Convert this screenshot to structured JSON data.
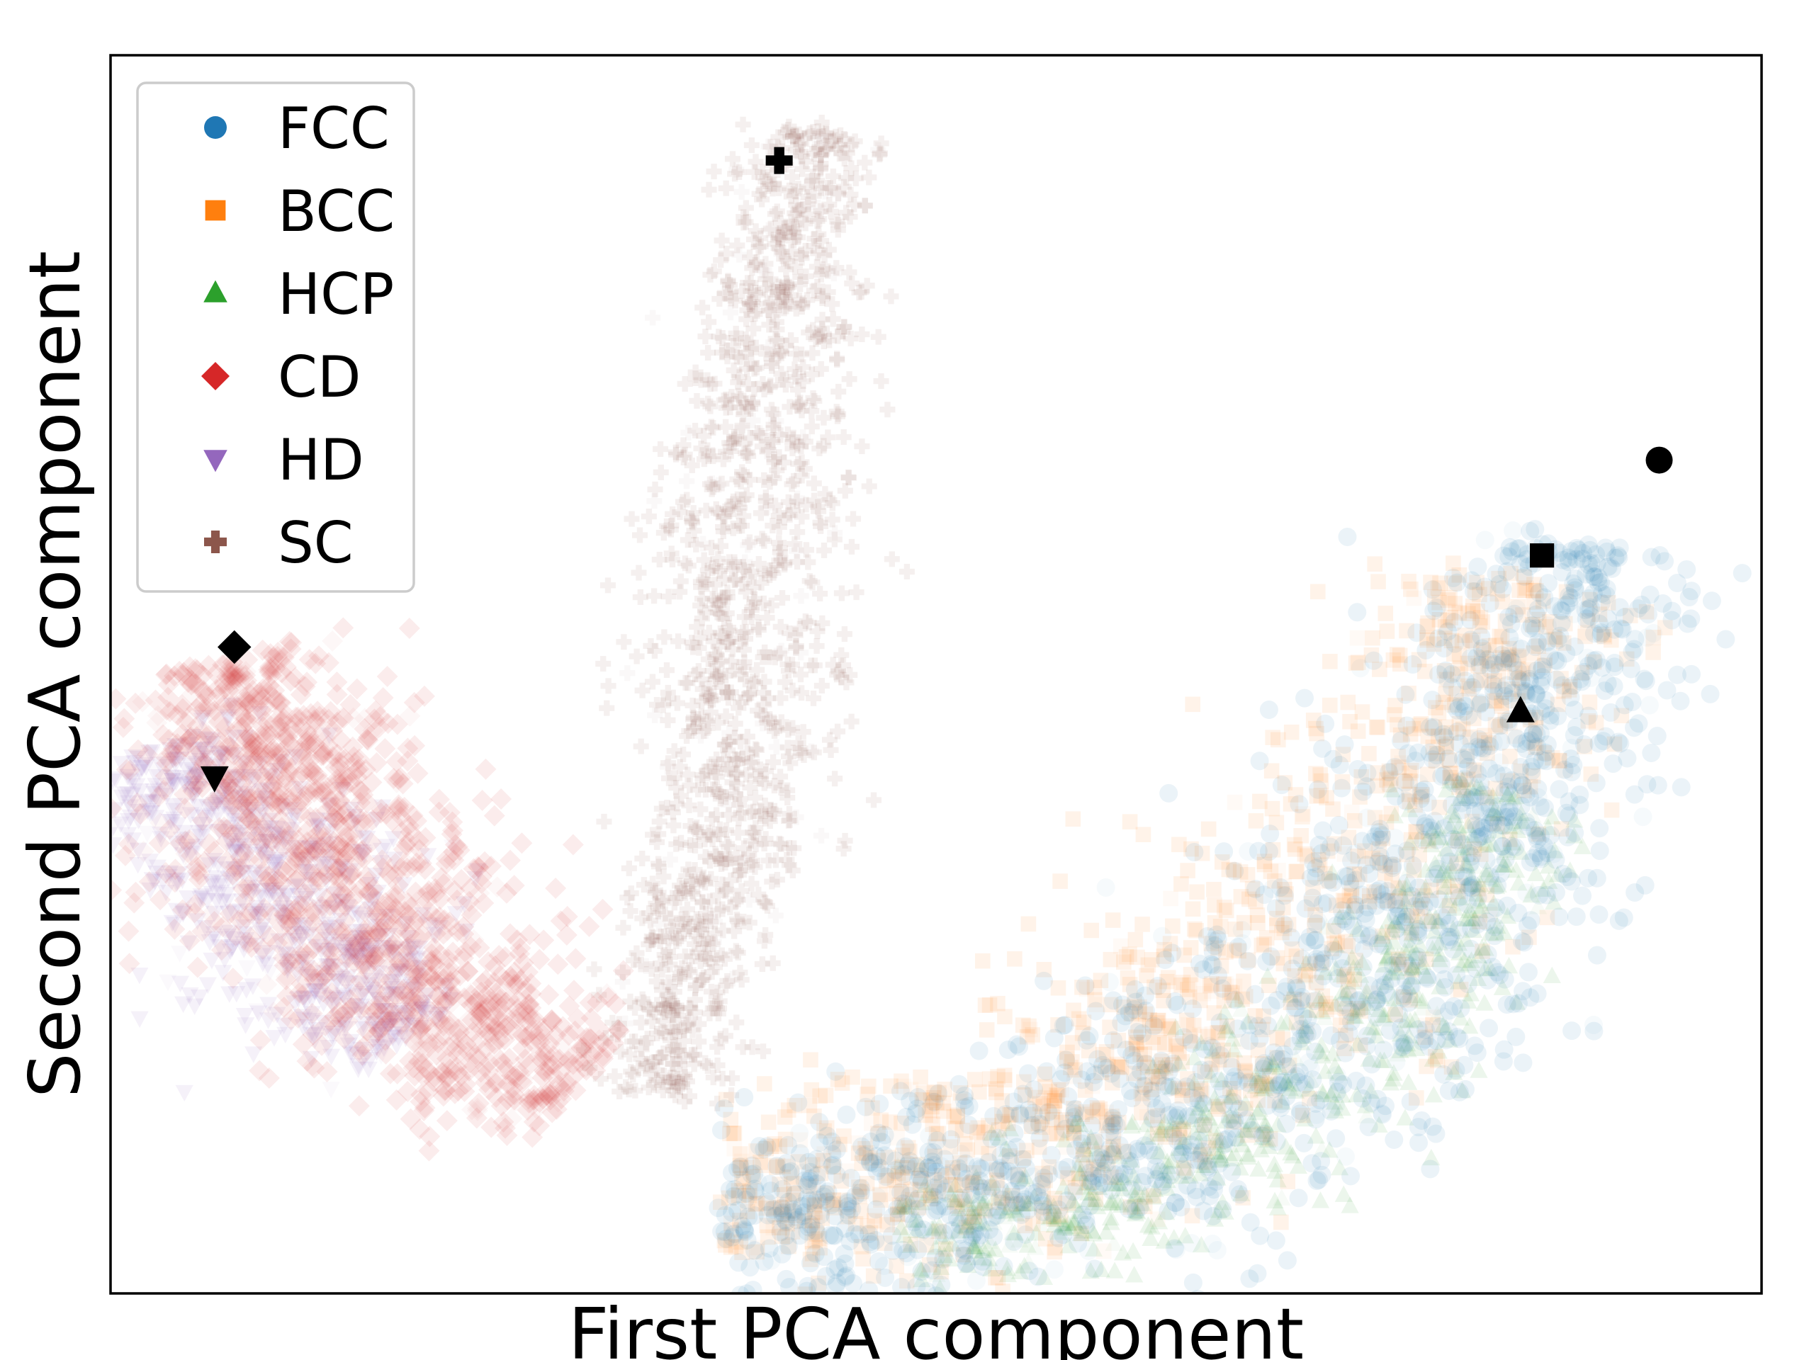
{
  "chart_data": {
    "type": "scatter",
    "title": "",
    "xlabel": "First PCA component",
    "ylabel": "Second PCA component",
    "xlim": [
      0,
      100
    ],
    "ylim": [
      0,
      100
    ],
    "x_ticks": false,
    "y_ticks": false,
    "grid": false,
    "legend": {
      "position": "top-left"
    },
    "series": [
      {
        "name": "FCC",
        "marker": "circle",
        "color": "#1f77b4",
        "ridge": [
          [
            37,
            6
          ],
          [
            42,
            6.5
          ],
          [
            50,
            7.5
          ],
          [
            58,
            10
          ],
          [
            66,
            14
          ],
          [
            74,
            21
          ],
          [
            80,
            30
          ],
          [
            84,
            42
          ],
          [
            87,
            53
          ],
          [
            89,
            61
          ]
        ],
        "spread": 4.5,
        "reference_point": [
          93.8,
          67.3
        ]
      },
      {
        "name": "BCC",
        "marker": "square",
        "color": "#ff7f0e",
        "ridge": [
          [
            37,
            8
          ],
          [
            44,
            8
          ],
          [
            52,
            10
          ],
          [
            60,
            15
          ],
          [
            68,
            22
          ],
          [
            74,
            31
          ],
          [
            79,
            41
          ],
          [
            83,
            51
          ],
          [
            86,
            58
          ]
        ],
        "spread": 4.5,
        "reference_point": [
          86.7,
          59.6
        ]
      },
      {
        "name": "HCP",
        "marker": "triangle-up",
        "color": "#2ca02c",
        "ridge": [
          [
            48,
            5
          ],
          [
            56,
            6
          ],
          [
            64,
            10
          ],
          [
            72,
            16
          ],
          [
            78,
            25
          ],
          [
            82,
            33
          ],
          [
            85,
            40
          ]
        ],
        "spread": 3.0,
        "reference_point": [
          85.4,
          47.0
        ]
      },
      {
        "name": "CD",
        "marker": "diamond",
        "color": "#d62728",
        "ridge": [
          [
            6,
            51
          ],
          [
            10,
            42
          ],
          [
            15,
            30
          ],
          [
            20,
            22
          ],
          [
            25,
            18
          ],
          [
            28,
            16
          ]
        ],
        "spread": 4.0,
        "reference_point": [
          7.5,
          52.2
        ]
      },
      {
        "name": "HD",
        "marker": "triangle-down",
        "color": "#9467bd",
        "ridge": [
          [
            2,
            44
          ],
          [
            5,
            41
          ],
          [
            9,
            34
          ],
          [
            13,
            26
          ],
          [
            18,
            20
          ]
        ],
        "spread": 3.5,
        "reference_point": [
          6.3,
          41.7
        ]
      },
      {
        "name": "SC",
        "marker": "plus",
        "color": "#8c564b",
        "ridge": [
          [
            33,
            16
          ],
          [
            35,
            25
          ],
          [
            37,
            38
          ],
          [
            38,
            52
          ],
          [
            39,
            66
          ],
          [
            40.5,
            80
          ],
          [
            41.5,
            89
          ],
          [
            42.5,
            94
          ]
        ],
        "spread": 2.5,
        "reference_point": [
          40.5,
          91.5
        ]
      }
    ]
  }
}
